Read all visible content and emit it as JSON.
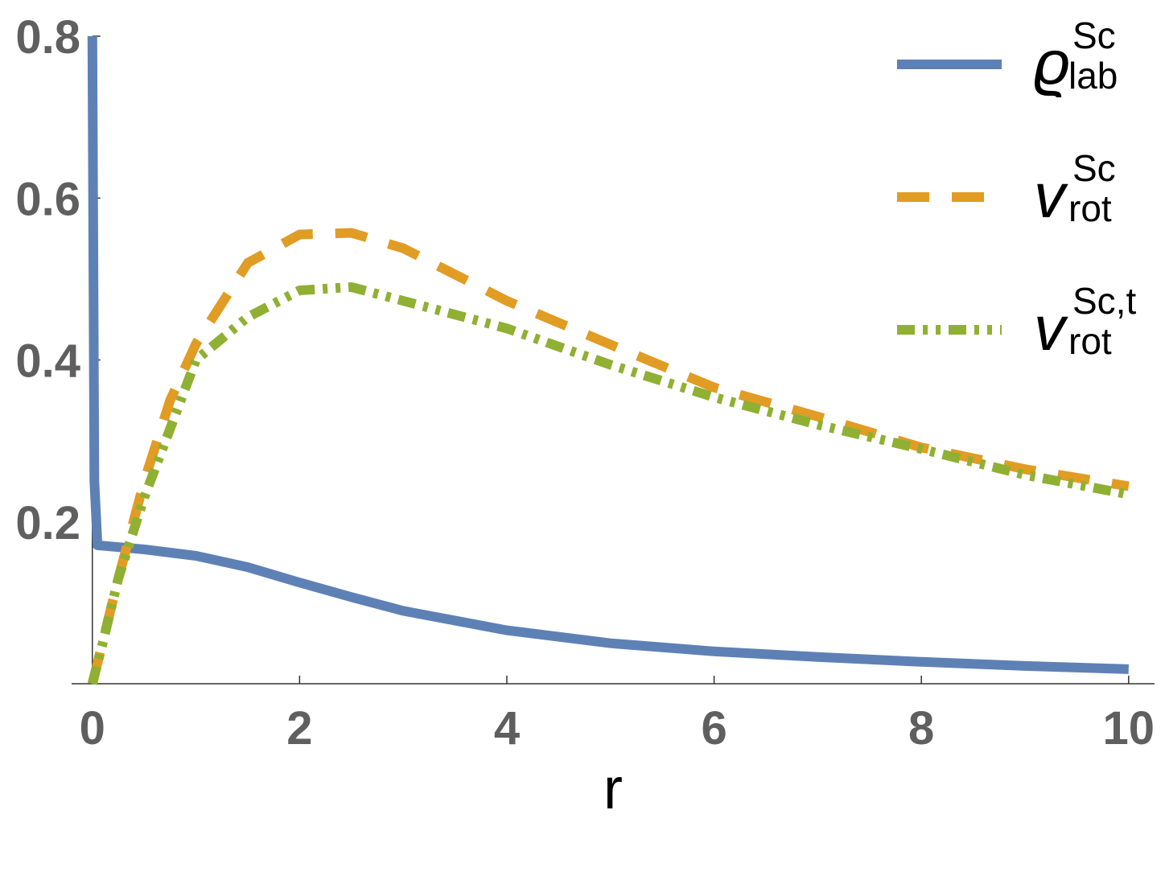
{
  "chart_data": {
    "type": "line",
    "x_label": "r",
    "xlim": [
      -0.2,
      10.25
    ],
    "ylim": [
      0,
      0.8
    ],
    "xticks": [
      0,
      2,
      4,
      6,
      8,
      10
    ],
    "yticks": [
      0.2,
      0.4,
      0.6,
      0.8
    ],
    "legend": "upper-right",
    "series": [
      {
        "name": "ϱ",
        "superscript": "Sc",
        "subscript": "lab",
        "color": "#5e81b5",
        "style": "solid",
        "x": [
          0,
          0.02,
          0.05,
          0.5,
          1,
          1.5,
          2,
          2.5,
          3,
          4,
          5,
          6,
          7,
          8,
          9,
          10
        ],
        "values": [
          0.8,
          0.25,
          0.171,
          0.166,
          0.158,
          0.144,
          0.125,
          0.107,
          0.09,
          0.066,
          0.05,
          0.04,
          0.033,
          0.027,
          0.022,
          0.018
        ]
      },
      {
        "name": "v",
        "superscript": "Sc",
        "subscript": "rot",
        "color": "#e19c24",
        "style": "dashed",
        "x": [
          0,
          0.25,
          0.5,
          0.75,
          1,
          1.5,
          2,
          2.5,
          3,
          4,
          5,
          6,
          7,
          8,
          9,
          10
        ],
        "values": [
          0,
          0.13,
          0.25,
          0.35,
          0.42,
          0.52,
          0.555,
          0.557,
          0.538,
          0.473,
          0.419,
          0.366,
          0.33,
          0.292,
          0.265,
          0.244
        ]
      },
      {
        "name": "v",
        "superscript": "Sc,t",
        "subscript": "rot",
        "color": "#8fb032",
        "style": "dash-dot-dot",
        "x": [
          0,
          0.1,
          0.25,
          0.5,
          1,
          1.5,
          2,
          2.5,
          3,
          4,
          5,
          6,
          7,
          8,
          9,
          10
        ],
        "values": [
          0,
          0.05,
          0.13,
          0.23,
          0.4,
          0.453,
          0.486,
          0.49,
          0.473,
          0.439,
          0.394,
          0.354,
          0.32,
          0.29,
          0.258,
          0.234
        ]
      }
    ]
  }
}
